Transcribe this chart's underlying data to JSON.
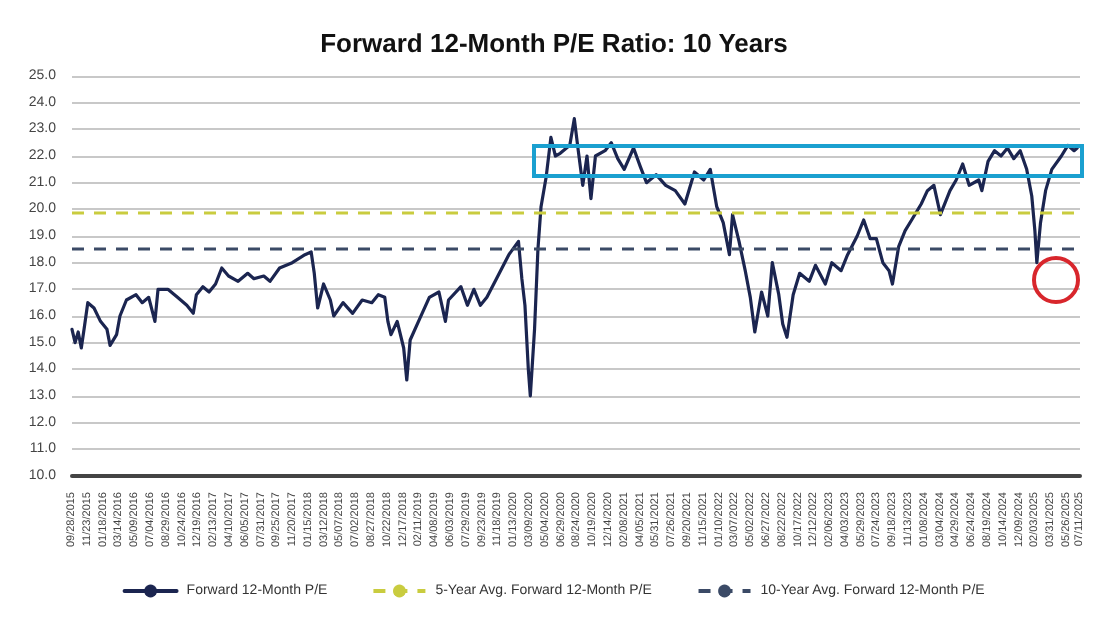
{
  "chart_data": {
    "type": "line",
    "title": "Forward 12-Month P/E Ratio: 10 Years",
    "x": [
      "2015-09-28",
      "2015-10-09",
      "2015-10-20",
      "2015-10-31",
      "2015-11-11",
      "2015-11-23",
      "2015-12-15",
      "2016-01-07",
      "2016-01-30",
      "2016-02-10",
      "2016-03-04",
      "2016-03-16",
      "2016-04-08",
      "2016-05-12",
      "2016-06-03",
      "2016-06-26",
      "2016-07-18",
      "2016-07-29",
      "2016-09-02",
      "2016-10-06",
      "2016-11-08",
      "2016-12-01",
      "2016-12-12",
      "2017-01-04",
      "2017-01-26",
      "2017-02-18",
      "2017-03-12",
      "2017-04-05",
      "2017-05-09",
      "2017-06-12",
      "2017-07-04",
      "2017-08-08",
      "2017-08-30",
      "2017-10-03",
      "2017-11-17",
      "2018-01-01",
      "2018-01-23",
      "2018-02-03",
      "2018-02-15",
      "2018-03-08",
      "2018-04-01",
      "2018-04-13",
      "2018-05-16",
      "2018-06-19",
      "2018-07-23",
      "2018-08-26",
      "2018-09-18",
      "2018-10-11",
      "2018-10-22",
      "2018-11-02",
      "2018-11-24",
      "2018-12-17",
      "2018-12-28",
      "2019-01-09",
      "2019-02-12",
      "2019-03-18",
      "2019-04-21",
      "2019-05-14",
      "2019-05-25",
      "2019-07-08",
      "2019-07-31",
      "2019-08-23",
      "2019-09-15",
      "2019-10-08",
      "2019-11-11",
      "2019-12-25",
      "2020-01-28",
      "2020-02-09",
      "2020-02-20",
      "2020-03-03",
      "2020-03-10",
      "2020-03-25",
      "2020-04-06",
      "2020-04-17",
      "2020-05-05",
      "2020-05-22",
      "2020-06-07",
      "2020-06-24",
      "2020-07-28",
      "2020-08-13",
      "2020-08-27",
      "2020-09-12",
      "2020-09-27",
      "2020-10-11",
      "2020-10-27",
      "2020-11-30",
      "2020-12-22",
      "2021-01-14",
      "2021-02-06",
      "2021-03-11",
      "2021-04-04",
      "2021-04-26",
      "2021-05-30",
      "2021-07-03",
      "2021-08-06",
      "2021-09-09",
      "2021-10-13",
      "2021-11-15",
      "2021-12-08",
      "2021-12-31",
      "2022-01-23",
      "2022-02-14",
      "2022-02-25",
      "2022-03-20",
      "2022-04-11",
      "2022-04-29",
      "2022-05-15",
      "2022-06-08",
      "2022-06-30",
      "2022-07-16",
      "2022-08-08",
      "2022-08-22",
      "2022-09-06",
      "2022-09-28",
      "2022-10-21",
      "2022-11-24",
      "2022-12-16",
      "2023-01-20",
      "2023-02-12",
      "2023-03-17",
      "2023-04-09",
      "2023-05-13",
      "2023-06-05",
      "2023-06-28",
      "2023-07-20",
      "2023-08-12",
      "2023-09-03",
      "2023-09-15",
      "2023-10-07",
      "2023-10-30",
      "2023-11-22",
      "2023-12-26",
      "2024-01-17",
      "2024-02-09",
      "2024-03-03",
      "2024-04-06",
      "2024-04-28",
      "2024-05-21",
      "2024-06-13",
      "2024-07-17",
      "2024-07-28",
      "2024-08-19",
      "2024-09-11",
      "2024-10-04",
      "2024-10-27",
      "2024-11-18",
      "2024-12-11",
      "2025-01-03",
      "2025-01-21",
      "2025-02-01",
      "2025-02-08",
      "2025-02-21",
      "2025-03-11",
      "2025-04-02",
      "2025-05-06",
      "2025-05-29",
      "2025-06-20",
      "2025-07-01"
    ],
    "series": [
      {
        "name": "Forward 12-Month P/E",
        "color": "#1b2550",
        "values": [
          15.5,
          15.0,
          15.4,
          14.8,
          15.6,
          16.5,
          16.3,
          15.8,
          15.5,
          14.9,
          15.3,
          16.0,
          16.6,
          16.8,
          16.5,
          16.7,
          15.8,
          17.0,
          17.0,
          16.7,
          16.4,
          16.1,
          16.8,
          17.1,
          16.9,
          17.2,
          17.8,
          17.5,
          17.3,
          17.6,
          17.4,
          17.5,
          17.3,
          17.8,
          18.0,
          18.3,
          18.4,
          17.6,
          16.3,
          17.2,
          16.6,
          16.0,
          16.5,
          16.1,
          16.6,
          16.5,
          16.8,
          16.7,
          15.8,
          15.3,
          15.8,
          14.8,
          13.6,
          15.1,
          15.9,
          16.7,
          16.9,
          15.8,
          16.6,
          17.1,
          16.4,
          17.0,
          16.4,
          16.7,
          17.4,
          18.3,
          18.8,
          17.4,
          16.4,
          14.0,
          13.0,
          15.5,
          18.5,
          20.1,
          21.2,
          22.7,
          22.0,
          22.1,
          22.4,
          23.4,
          22.2,
          20.9,
          22.0,
          20.4,
          22.0,
          22.2,
          22.5,
          21.9,
          21.5,
          22.3,
          21.6,
          21.0,
          21.3,
          20.9,
          20.7,
          20.2,
          21.4,
          21.1,
          21.5,
          20.1,
          19.5,
          18.3,
          19.8,
          18.8,
          17.7,
          16.7,
          15.4,
          16.9,
          16.0,
          18.0,
          16.8,
          15.7,
          15.2,
          16.8,
          17.6,
          17.3,
          17.9,
          17.2,
          18.0,
          17.7,
          18.3,
          19.0,
          19.6,
          18.9,
          18.9,
          18.0,
          17.7,
          17.2,
          18.6,
          19.2,
          19.6,
          20.2,
          20.7,
          20.9,
          19.8,
          20.7,
          21.1,
          21.7,
          20.9,
          21.1,
          20.7,
          21.8,
          22.2,
          22.0,
          22.3,
          21.9,
          22.2,
          21.5,
          20.5,
          19.2,
          18.0,
          19.5,
          20.7,
          21.5,
          22.0,
          22.4,
          22.2,
          22.3
        ]
      }
    ],
    "ref_lines": [
      {
        "axis": "y",
        "value": 19.9,
        "label": "5-Year Avg. Forward 12-Month P/E",
        "color": "#c9cc3f",
        "line_style": "dashed"
      },
      {
        "axis": "y",
        "value": 18.5,
        "label": "10-Year Avg. Forward 12-Month P/E",
        "color": "#3b4a66",
        "line_style": "dashed"
      }
    ],
    "xlim": [
      "2015-09-28",
      "2025-07-11"
    ],
    "xticks": [
      {
        "value": "2015-09-28",
        "label": "09/28/2015"
      },
      {
        "value": "2015-11-23",
        "label": "11/23/2015"
      },
      {
        "value": "2016-01-18",
        "label": "01/18/2016"
      },
      {
        "value": "2016-03-14",
        "label": "03/14/2016"
      },
      {
        "value": "2016-05-09",
        "label": "05/09/2016"
      },
      {
        "value": "2016-07-04",
        "label": "07/04/2016"
      },
      {
        "value": "2016-08-29",
        "label": "08/29/2016"
      },
      {
        "value": "2016-10-24",
        "label": "10/24/2016"
      },
      {
        "value": "2016-12-19",
        "label": "12/19/2016"
      },
      {
        "value": "2017-02-13",
        "label": "02/13/2017"
      },
      {
        "value": "2017-04-10",
        "label": "04/10/2017"
      },
      {
        "value": "2017-06-05",
        "label": "06/05/2017"
      },
      {
        "value": "2017-07-31",
        "label": "07/31/2017"
      },
      {
        "value": "2017-09-25",
        "label": "09/25/2017"
      },
      {
        "value": "2017-11-20",
        "label": "11/20/2017"
      },
      {
        "value": "2018-01-15",
        "label": "01/15/2018"
      },
      {
        "value": "2018-03-12",
        "label": "03/12/2018"
      },
      {
        "value": "2018-05-07",
        "label": "05/07/2018"
      },
      {
        "value": "2018-07-02",
        "label": "07/02/2018"
      },
      {
        "value": "2018-08-27",
        "label": "08/27/2018"
      },
      {
        "value": "2018-10-22",
        "label": "10/22/2018"
      },
      {
        "value": "2018-12-17",
        "label": "12/17/2018"
      },
      {
        "value": "2019-02-11",
        "label": "02/11/2019"
      },
      {
        "value": "2019-04-08",
        "label": "04/08/2019"
      },
      {
        "value": "2019-06-03",
        "label": "06/03/2019"
      },
      {
        "value": "2019-07-29",
        "label": "07/29/2019"
      },
      {
        "value": "2019-09-23",
        "label": "09/23/2019"
      },
      {
        "value": "2019-11-18",
        "label": "11/18/2019"
      },
      {
        "value": "2020-01-13",
        "label": "01/13/2020"
      },
      {
        "value": "2020-03-09",
        "label": "03/09/2020"
      },
      {
        "value": "2020-05-04",
        "label": "05/04/2020"
      },
      {
        "value": "2020-06-29",
        "label": "06/29/2020"
      },
      {
        "value": "2020-08-24",
        "label": "08/24/2020"
      },
      {
        "value": "2020-10-19",
        "label": "10/19/2020"
      },
      {
        "value": "2020-12-14",
        "label": "12/14/2020"
      },
      {
        "value": "2021-02-08",
        "label": "02/08/2021"
      },
      {
        "value": "2021-04-05",
        "label": "04/05/2021"
      },
      {
        "value": "2021-05-31",
        "label": "05/31/2021"
      },
      {
        "value": "2021-07-26",
        "label": "07/26/2021"
      },
      {
        "value": "2021-09-20",
        "label": "09/20/2021"
      },
      {
        "value": "2021-11-15",
        "label": "11/15/2021"
      },
      {
        "value": "2022-01-10",
        "label": "01/10/2022"
      },
      {
        "value": "2022-03-07",
        "label": "03/07/2022"
      },
      {
        "value": "2022-05-02",
        "label": "05/02/2022"
      },
      {
        "value": "2022-06-27",
        "label": "06/27/2022"
      },
      {
        "value": "2022-08-22",
        "label": "08/22/2022"
      },
      {
        "value": "2022-10-17",
        "label": "10/17/2022"
      },
      {
        "value": "2022-12-12",
        "label": "12/12/2022"
      },
      {
        "value": "2023-02-06",
        "label": "02/06/2023"
      },
      {
        "value": "2023-04-03",
        "label": "04/03/2023"
      },
      {
        "value": "2023-05-29",
        "label": "05/29/2023"
      },
      {
        "value": "2023-07-24",
        "label": "07/24/2023"
      },
      {
        "value": "2023-09-18",
        "label": "09/18/2023"
      },
      {
        "value": "2023-11-13",
        "label": "11/13/2023"
      },
      {
        "value": "2024-01-08",
        "label": "01/08/2024"
      },
      {
        "value": "2024-03-04",
        "label": "03/04/2024"
      },
      {
        "value": "2024-04-29",
        "label": "04/29/2024"
      },
      {
        "value": "2024-06-24",
        "label": "06/24/2024"
      },
      {
        "value": "2024-08-19",
        "label": "08/19/2024"
      },
      {
        "value": "2024-10-14",
        "label": "10/14/2024"
      },
      {
        "value": "2024-12-09",
        "label": "12/09/2024"
      },
      {
        "value": "2025-02-03",
        "label": "02/03/2025"
      },
      {
        "value": "2025-03-31",
        "label": "03/31/2025"
      },
      {
        "value": "2025-05-26",
        "label": "05/26/2025"
      },
      {
        "value": "2025-07-11",
        "label": "07/11/2025"
      }
    ],
    "ylim": [
      10,
      25
    ],
    "yticks": [
      {
        "value": 10,
        "label": "10.0"
      },
      {
        "value": 11,
        "label": "11.0"
      },
      {
        "value": 12,
        "label": "12.0"
      },
      {
        "value": 13,
        "label": "13.0"
      },
      {
        "value": 14,
        "label": "14.0"
      },
      {
        "value": 15,
        "label": "15.0"
      },
      {
        "value": 16,
        "label": "16.0"
      },
      {
        "value": 17,
        "label": "17.0"
      },
      {
        "value": 18,
        "label": "18.0"
      },
      {
        "value": 19,
        "label": "19.0"
      },
      {
        "value": 20,
        "label": "20.0"
      },
      {
        "value": 21,
        "label": "21.0"
      },
      {
        "value": 22,
        "label": "22.0"
      },
      {
        "value": 23,
        "label": "23.0"
      },
      {
        "value": 24,
        "label": "24.0"
      },
      {
        "value": 25,
        "label": "25.0"
      }
    ],
    "grid": "y",
    "legend": "bottom",
    "marker": "none",
    "line_style": "solid"
  }
}
